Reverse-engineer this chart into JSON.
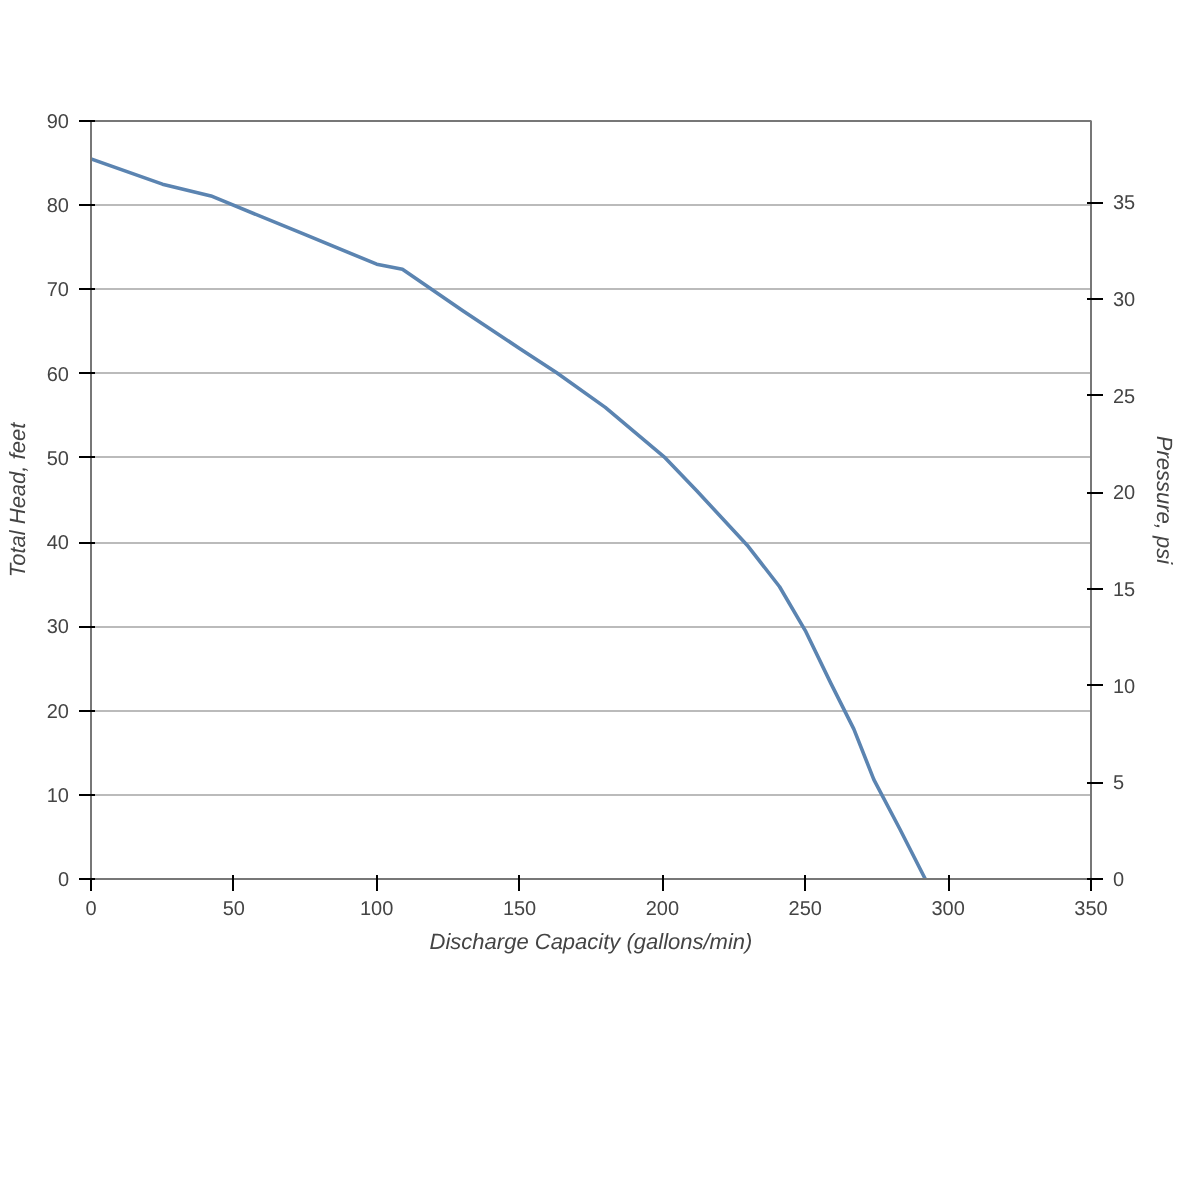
{
  "chart_data": {
    "type": "line",
    "xlabel": "Discharge Capacity (gallons/min)",
    "ylabel": "Total Head, feet",
    "y2label": "Pressure, psi",
    "x": [
      0,
      25,
      42,
      75,
      100,
      109,
      130,
      150,
      163,
      180,
      201,
      212,
      230,
      241,
      250,
      259,
      267,
      274,
      283,
      292
    ],
    "series": [
      {
        "color": "#5b84b1",
        "values": [
          85.5,
          82.5,
          81.1,
          76.5,
          73,
          72.4,
          67.5,
          63,
          60.1,
          56,
          50,
          46.1,
          39.5,
          34.7,
          29.5,
          23.2,
          17.8,
          11.8,
          6,
          0
        ]
      }
    ],
    "xlim": [
      0,
      350
    ],
    "xticks": [
      0,
      50,
      100,
      150,
      200,
      250,
      300,
      350
    ],
    "ylim": [
      0,
      90
    ],
    "yticks": [
      0,
      10,
      20,
      30,
      40,
      50,
      60,
      70,
      80,
      90
    ],
    "y2lim": [
      0,
      39.2
    ],
    "y2ticks": [
      0,
      5,
      10,
      15,
      20,
      25,
      30,
      35
    ],
    "grid": "y",
    "marker": "none",
    "line_style": "solid"
  }
}
